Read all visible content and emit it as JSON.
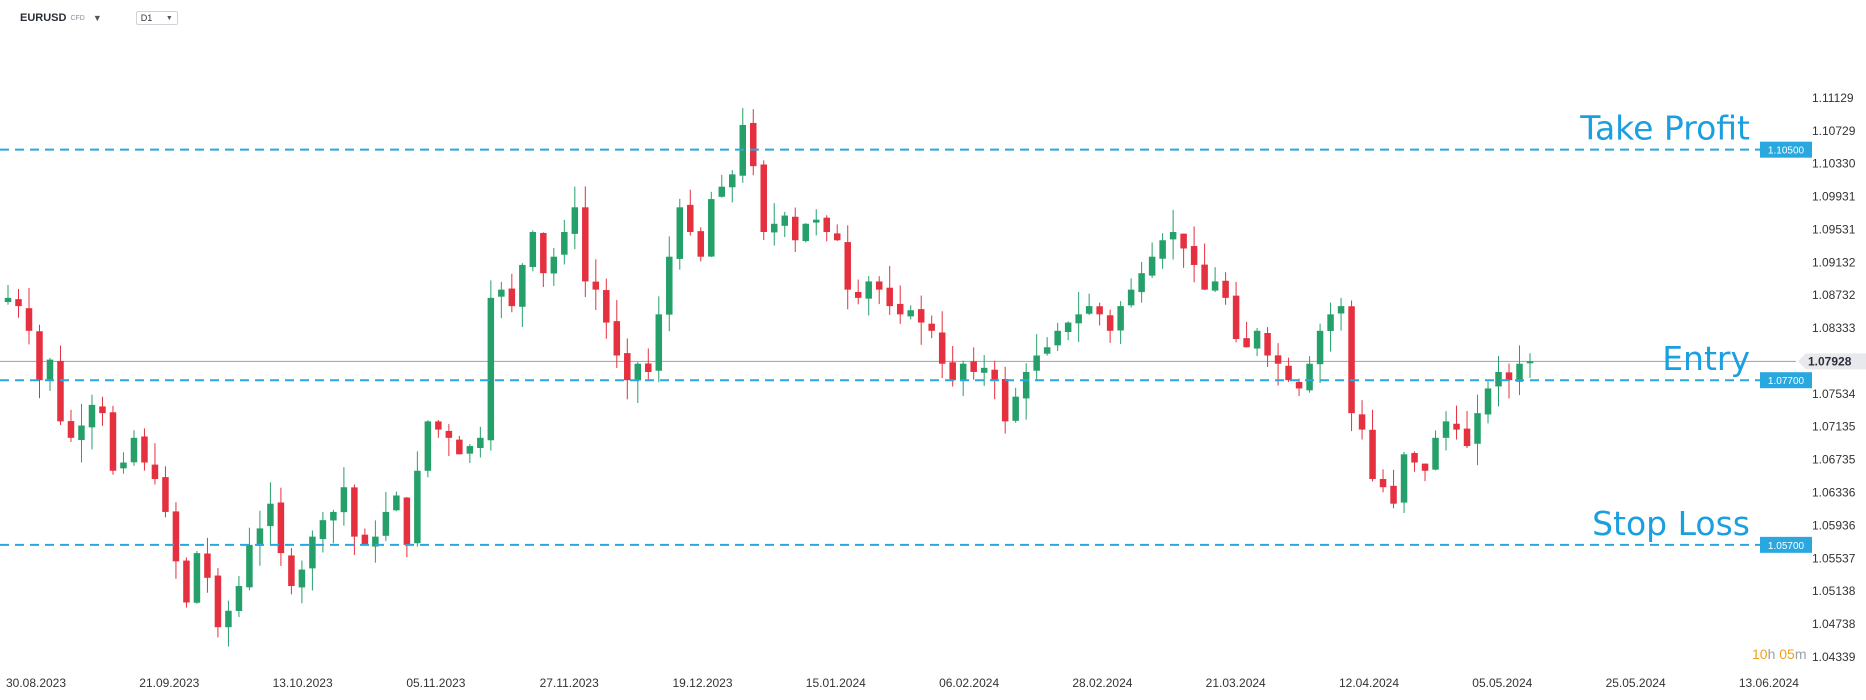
{
  "header": {
    "symbol": "EURUSD",
    "instrument_type": "CFD",
    "timeframe": "D1"
  },
  "countdown": {
    "hours": "10",
    "hours_unit": "h",
    "minutes": "05",
    "minutes_unit": "m"
  },
  "colors": {
    "up": "#26a06a",
    "down": "#e5303f",
    "level_line": "#29a8e0",
    "level_text": "#1a9fe0",
    "price_line": "#9aa0a8",
    "axis_text": "#333333"
  },
  "chart_data": {
    "type": "candlestick",
    "title": "",
    "xlabel": "",
    "ylabel": "",
    "ylim": [
      1.0418,
      1.1165
    ],
    "y_ticks": [
      "1.11129",
      "1.10729",
      "1.10330",
      "1.09931",
      "1.09531",
      "1.09132",
      "1.08732",
      "1.08333",
      "1.07534",
      "1.07135",
      "1.06735",
      "1.06336",
      "1.05936",
      "1.05537",
      "1.05138",
      "1.04738",
      "1.04339"
    ],
    "x_ticks": [
      "30.08.2023",
      "21.09.2023",
      "13.10.2023",
      "05.11.2023",
      "27.11.2023",
      "19.12.2023",
      "15.01.2024",
      "06.02.2024",
      "28.02.2024",
      "21.03.2024",
      "12.04.2024",
      "05.05.2024",
      "25.05.2024",
      "13.06.2024"
    ],
    "x_ticks_note": "",
    "current_price": {
      "value": 1.07928,
      "label": "1.07928"
    },
    "levels": [
      {
        "name": "Take Profit",
        "price": 1.105,
        "label": "1.10500"
      },
      {
        "name": "Entry",
        "price": 1.077,
        "label": "1.07700"
      },
      {
        "name": "Stop Loss",
        "price": 1.057,
        "label": "1.05700"
      }
    ],
    "legend": "none",
    "grid": false,
    "close_path": [
      1.087,
      1.086,
      1.083,
      1.077,
      1.0795,
      1.072,
      1.07,
      1.0715,
      1.074,
      1.073,
      1.066,
      1.067,
      1.07,
      1.067,
      1.065,
      1.061,
      1.055,
      1.05,
      1.056,
      1.053,
      1.047,
      1.049,
      1.052,
      1.057,
      1.059,
      1.062,
      1.056,
      1.052,
      1.054,
      1.058,
      1.06,
      1.061,
      1.064,
      1.058,
      1.057,
      1.058,
      1.061,
      1.063,
      1.057,
      1.066,
      1.072,
      1.071,
      1.07,
      1.068,
      1.069,
      1.07,
      1.087,
      1.088,
      1.086,
      1.091,
      1.095,
      1.09,
      1.092,
      1.095,
      1.098,
      1.089,
      1.088,
      1.084,
      1.08,
      1.077,
      1.079,
      1.078,
      1.085,
      1.092,
      1.098,
      1.095,
      1.092,
      1.099,
      1.1005,
      1.102,
      1.108,
      1.103,
      1.095,
      1.096,
      1.097,
      1.094,
      1.096,
      1.0965,
      1.095,
      1.094,
      1.088,
      1.087,
      1.089,
      1.088,
      1.086,
      1.085,
      1.0855,
      1.084,
      1.083,
      1.079,
      1.077,
      1.079,
      1.078,
      1.0785,
      1.077,
      1.072,
      1.075,
      1.078,
      1.08,
      1.081,
      1.083,
      1.084,
      1.085,
      1.086,
      1.085,
      1.083,
      1.086,
      1.088,
      1.09,
      1.092,
      1.094,
      1.095,
      1.093,
      1.091,
      1.088,
      1.089,
      1.087,
      1.082,
      1.081,
      1.083,
      1.08,
      1.079,
      1.077,
      1.076,
      1.079,
      1.083,
      1.085,
      1.086,
      1.073,
      1.071,
      1.065,
      1.064,
      1.062,
      1.068,
      1.067,
      1.066,
      1.07,
      1.072,
      1.071,
      1.069,
      1.073,
      1.076,
      1.078,
      1.077,
      1.079,
      1.0793
    ]
  }
}
